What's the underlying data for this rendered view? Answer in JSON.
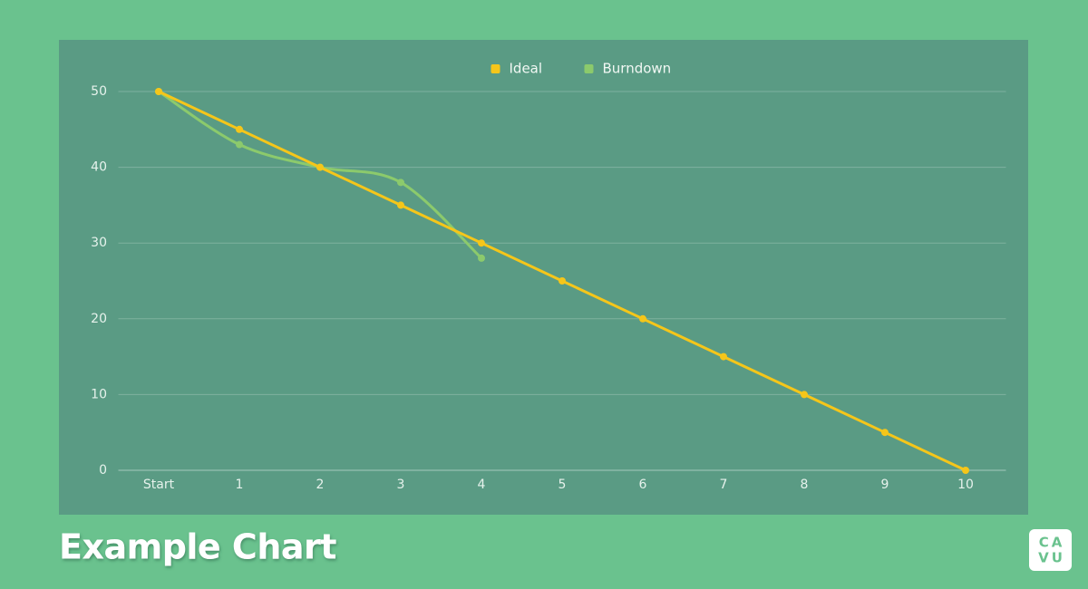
{
  "chart_data": {
    "type": "line",
    "title": "Example Chart",
    "categories": [
      "Start",
      "1",
      "2",
      "3",
      "4",
      "5",
      "6",
      "7",
      "8",
      "9",
      "10"
    ],
    "series": [
      {
        "name": "Ideal",
        "color": "#f5c61a",
        "smooth": false,
        "values": [
          50,
          45,
          40,
          35,
          30,
          25,
          20,
          15,
          10,
          5,
          0
        ]
      },
      {
        "name": "Burndown",
        "color": "#8cca6c",
        "smooth": true,
        "values": [
          50,
          43,
          40,
          38,
          28,
          null,
          null,
          null,
          null,
          null,
          null
        ]
      }
    ],
    "ylim": [
      0,
      50
    ],
    "yticks": [
      0,
      10,
      20,
      30,
      40,
      50
    ],
    "grid": true,
    "legend": "top"
  },
  "logo": {
    "line1": "CA",
    "line2": "VU"
  }
}
